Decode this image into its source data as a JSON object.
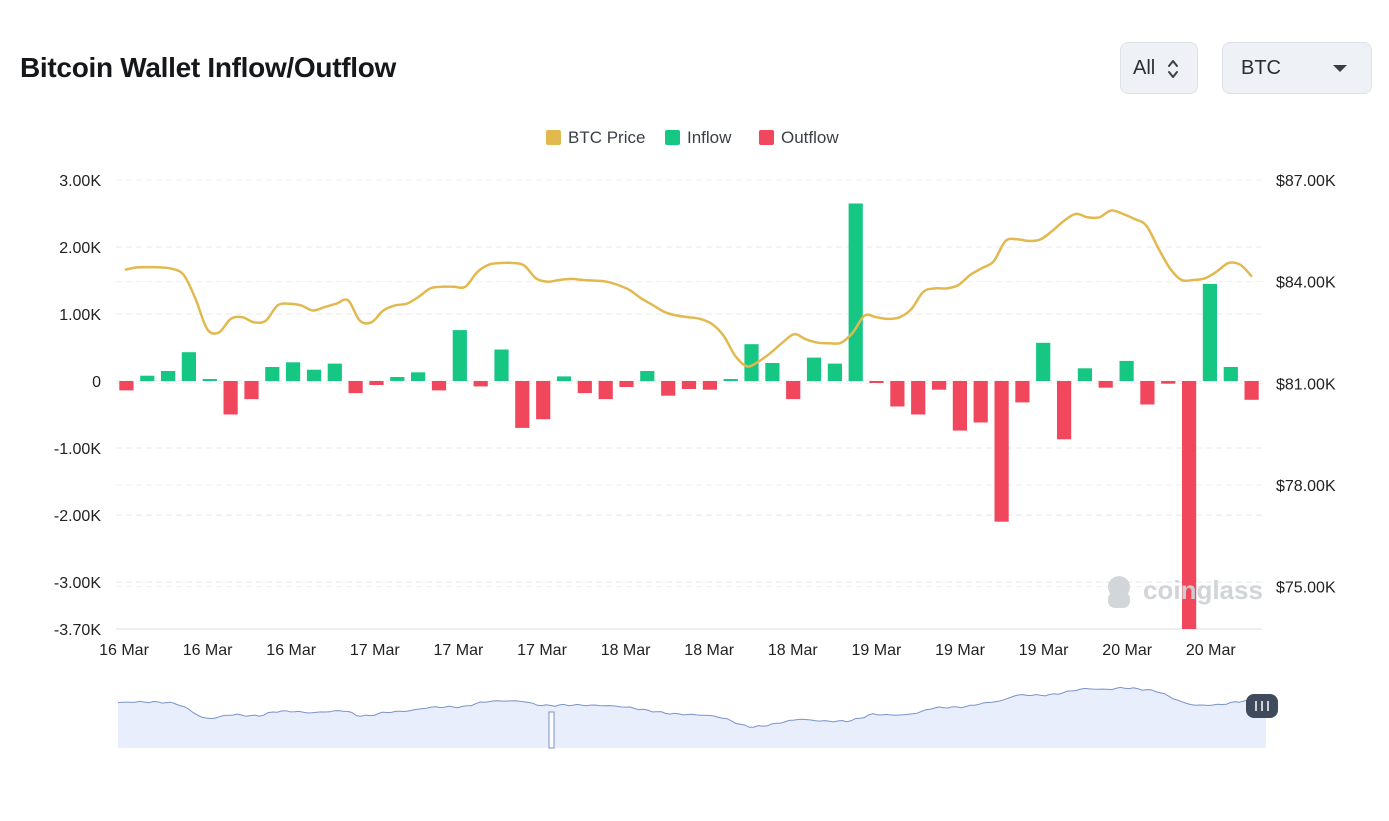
{
  "header": {
    "title": "Bitcoin Wallet Inflow/Outflow"
  },
  "controls": {
    "range": {
      "value": "All",
      "icon": "sort-updown-icon"
    },
    "coin": {
      "value": "BTC",
      "icon": "chevron-down-icon"
    }
  },
  "watermark": {
    "text": "coinglass"
  },
  "colors": {
    "price": "#e2b94f",
    "inflow": "#16c784",
    "outflow": "#f0475c",
    "navigator_fill": "#e8eefb",
    "navigator_line": "#7a93c9"
  },
  "chart_data": {
    "type": "bar",
    "legend": [
      "BTC Price",
      "Inflow",
      "Outflow"
    ],
    "legend_position": "top-center",
    "grid": true,
    "y_left": {
      "ticks": [
        "3.00K",
        "2.00K",
        "1.00K",
        "0",
        "-1.00K",
        "-2.00K",
        "-3.00K",
        "-3.70K"
      ],
      "range": [
        -3700,
        3000
      ]
    },
    "y_right": {
      "ticks": [
        "$87.00K",
        "$84.00K",
        "$81.00K",
        "$78.00K",
        "$75.00K"
      ],
      "range": [
        73750,
        87000
      ]
    },
    "x_ticks": [
      "16 Mar",
      "16 Mar",
      "16 Mar",
      "17 Mar",
      "17 Mar",
      "17 Mar",
      "18 Mar",
      "18 Mar",
      "18 Mar",
      "19 Mar",
      "19 Mar",
      "19 Mar",
      "20 Mar",
      "20 Mar"
    ],
    "series": [
      {
        "name": "Inflow/Outflow",
        "values": [
          -140,
          80,
          150,
          430,
          30,
          -500,
          -270,
          210,
          280,
          170,
          260,
          -180,
          -60,
          60,
          130,
          -140,
          760,
          -80,
          470,
          -700,
          -570,
          70,
          -180,
          -270,
          -90,
          150,
          -220,
          -120,
          -130,
          30,
          550,
          270,
          -270,
          350,
          260,
          2650,
          -30,
          -380,
          -500,
          -130,
          -740,
          -620,
          -2100,
          -320,
          570,
          -870,
          190,
          -100,
          300,
          -350,
          -40,
          -3700,
          1450,
          210,
          -280
        ]
      },
      {
        "name": "BTC Price",
        "values": [
          84350,
          84420,
          84430,
          84420,
          84380,
          84200,
          83500,
          82600,
          82500,
          82900,
          82950,
          82800,
          82850,
          83300,
          83350,
          83300,
          83150,
          83250,
          83350,
          83450,
          82850,
          82800,
          83150,
          83300,
          83350,
          83550,
          83800,
          83850,
          83850,
          83850,
          84280,
          84500,
          84550,
          84550,
          84480,
          84100,
          84000,
          84050,
          84080,
          84050,
          84030,
          84000,
          83900,
          83750,
          83500,
          83300,
          83100,
          83000,
          82950,
          82900,
          82750,
          82400,
          81800,
          81500,
          81650,
          81900,
          82200,
          82450,
          82300,
          82200,
          82180,
          82200,
          82500,
          83000,
          82950,
          82900,
          82950,
          83200,
          83700,
          83800,
          83800,
          83900,
          84200,
          84400,
          84600,
          85200,
          85250,
          85200,
          85250,
          85500,
          85800,
          86000,
          85900,
          85900,
          86100,
          86000,
          85850,
          85650,
          85000,
          84400,
          84050,
          84050,
          84100,
          84300,
          84550,
          84500,
          84150
        ]
      }
    ]
  }
}
